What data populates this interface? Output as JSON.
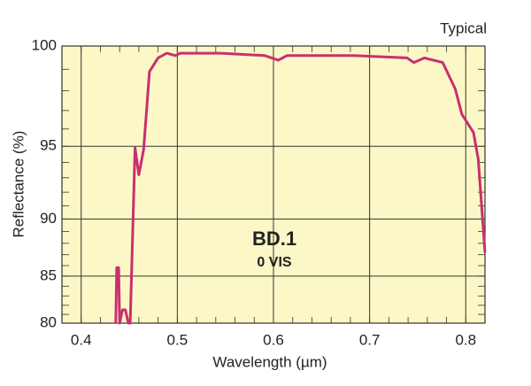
{
  "chart_data": {
    "type": "line",
    "annotation": "Typical",
    "label": "BD.1",
    "sublabel": "0 VIS",
    "x_label": "Wavelength (µm)",
    "y_label": "Reflectance (%)",
    "xlim": [
      0.38,
      0.82
    ],
    "xticks": [
      0.4,
      0.5,
      0.6,
      0.7,
      0.8
    ],
    "ylim": [
      80,
      100
    ],
    "yticks": [
      80,
      85,
      90,
      95,
      100
    ],
    "grid": true,
    "background": "#fcf7c6",
    "series": [
      {
        "name": "BD.1",
        "color": "#c83070",
        "x": [
          0.436,
          0.437,
          0.439,
          0.44,
          0.443,
          0.446,
          0.449,
          0.451,
          0.456,
          0.46,
          0.465,
          0.471,
          0.48,
          0.489,
          0.498,
          0.503,
          0.545,
          0.591,
          0.605,
          0.614,
          0.683,
          0.739,
          0.746,
          0.757,
          0.776,
          0.789,
          0.796,
          0.808,
          0.813,
          0.82
        ],
        "values": [
          80,
          85.8,
          85.8,
          80,
          81.5,
          81.5,
          80,
          80,
          94.9,
          93.2,
          94.8,
          98.9,
          99.5,
          99.7,
          99.6,
          99.7,
          99.7,
          99.6,
          99.4,
          99.6,
          99.6,
          99.5,
          99.3,
          99.5,
          99.3,
          98.1,
          96.8,
          95.8,
          94.2,
          87.2
        ]
      }
    ]
  }
}
